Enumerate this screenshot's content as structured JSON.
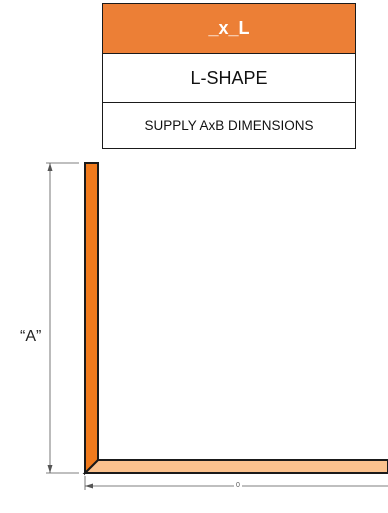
{
  "spec_table": {
    "code": "_x_L",
    "shape_name": "L-SHAPE",
    "instruction": "SUPPLY AxB DIMENSIONS"
  },
  "drawing": {
    "dimension_a_label": "“A”",
    "dimension_b_label": "0",
    "colors": {
      "vertical_leg": "#f07a1c",
      "horizontal_leg": "#fbc28e",
      "outline": "#1a1a1a",
      "dimension_line": "#555555",
      "table_header": "#ec7f36"
    }
  }
}
